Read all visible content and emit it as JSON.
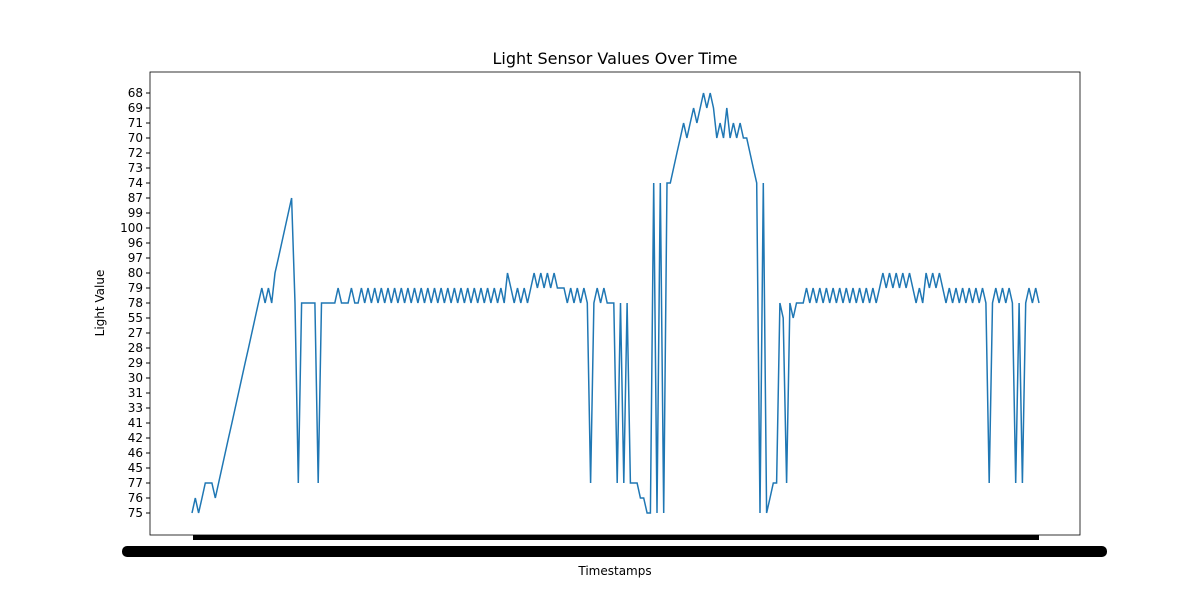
{
  "chart_data": {
    "type": "line",
    "title": "Light Sensor Values Over Time",
    "xlabel": "Timestamps",
    "ylabel": "Light Value",
    "x_tick_labels_note": "",
    "y_categories": [
      "75",
      "76",
      "77",
      "45",
      "46",
      "42",
      "41",
      "33",
      "31",
      "30",
      "29",
      "28",
      "27",
      "55",
      "78",
      "79",
      "80",
      "97",
      "96",
      "100",
      "99",
      "87",
      "74",
      "73",
      "72",
      "70",
      "71",
      "69",
      "68"
    ],
    "grid": false,
    "legend": "none",
    "colors": {
      "line": "#1f77b4",
      "axes": "#000000",
      "background": "#ffffff"
    },
    "series": [
      {
        "values": [
          "75",
          "76",
          "75",
          "76",
          "77",
          "77",
          "77",
          "76",
          "77",
          "45",
          "46",
          "42",
          "41",
          "33",
          "31",
          "30",
          "29",
          "28",
          "27",
          "55",
          "78",
          "79",
          "78",
          "79",
          "78",
          "80",
          "97",
          "96",
          "100",
          "99",
          "87",
          "78",
          "77",
          "78",
          "78",
          "78",
          "78",
          "78",
          "77",
          "78",
          "78",
          "78",
          "78",
          "78",
          "79",
          "78",
          "78",
          "78",
          "79",
          "78",
          "78",
          "79",
          "78",
          "79",
          "78",
          "79",
          "78",
          "79",
          "78",
          "79",
          "78",
          "79",
          "78",
          "79",
          "78",
          "79",
          "78",
          "79",
          "78",
          "79",
          "78",
          "79",
          "78",
          "79",
          "78",
          "79",
          "78",
          "79",
          "78",
          "79",
          "78",
          "79",
          "78",
          "79",
          "78",
          "79",
          "78",
          "79",
          "78",
          "79",
          "78",
          "79",
          "78",
          "79",
          "78",
          "80",
          "79",
          "78",
          "79",
          "78",
          "79",
          "78",
          "79",
          "80",
          "79",
          "80",
          "79",
          "80",
          "79",
          "80",
          "79",
          "79",
          "79",
          "78",
          "79",
          "78",
          "79",
          "78",
          "79",
          "78",
          "77",
          "78",
          "79",
          "78",
          "79",
          "78",
          "78",
          "78",
          "77",
          "78",
          "77",
          "78",
          "77",
          "77",
          "77",
          "76",
          "76",
          "75",
          "75",
          "74",
          "75",
          "74",
          "75",
          "74",
          "74",
          "73",
          "72",
          "70",
          "71",
          "70",
          "71",
          "69",
          "71",
          "69",
          "68",
          "69",
          "68",
          "69",
          "70",
          "71",
          "70",
          "69",
          "70",
          "71",
          "70",
          "71",
          "70",
          "70",
          "72",
          "73",
          "74",
          "75",
          "74",
          "75",
          "76",
          "77",
          "77",
          "78",
          "55",
          "77",
          "78",
          "55",
          "78",
          "78",
          "78",
          "79",
          "78",
          "79",
          "78",
          "79",
          "78",
          "79",
          "78",
          "79",
          "78",
          "79",
          "78",
          "79",
          "78",
          "79",
          "78",
          "79",
          "78",
          "79",
          "78",
          "79",
          "78",
          "79",
          "80",
          "79",
          "80",
          "79",
          "80",
          "79",
          "80",
          "79",
          "80",
          "79",
          "78",
          "79",
          "78",
          "80",
          "79",
          "80",
          "79",
          "80",
          "79",
          "78",
          "79",
          "78",
          "79",
          "78",
          "79",
          "78",
          "79",
          "78",
          "79",
          "78",
          "79",
          "78",
          "77",
          "78",
          "79",
          "78",
          "79",
          "78",
          "79",
          "78",
          "77",
          "78",
          "77",
          "78",
          "79",
          "78",
          "79",
          "78"
        ]
      }
    ]
  }
}
